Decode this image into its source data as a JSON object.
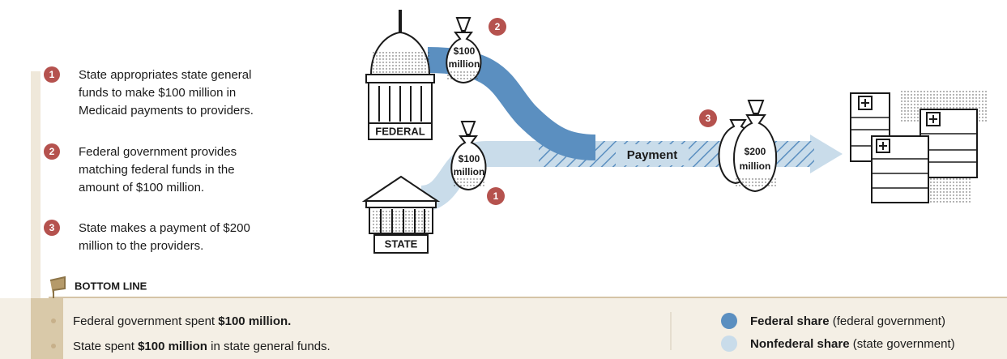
{
  "steps": [
    {
      "number": "1",
      "lines": [
        "State appropriates state general",
        "funds to make $100 million in",
        "Medicaid payments to providers."
      ]
    },
    {
      "number": "2",
      "lines": [
        "Federal government provides",
        "matching federal funds in the",
        "amount of $100 million."
      ]
    },
    {
      "number": "3",
      "lines": [
        "State makes a payment of $200",
        "million to the providers."
      ]
    }
  ],
  "diagram": {
    "federal_label": "FEDERAL",
    "state_label": "STATE",
    "bags": [
      [
        "$100",
        "million"
      ],
      [
        "$100",
        "million"
      ],
      [
        "$200",
        "million"
      ]
    ],
    "badges": [
      "2",
      "1",
      "3"
    ],
    "payment_label": "Payment"
  },
  "bottom_line": {
    "title": "BOTTOM LINE",
    "statements": [
      [
        "Federal government spent ",
        "$100 million."
      ],
      [
        "State spent ",
        "$100 million",
        " in state general funds."
      ]
    ]
  },
  "legend": [
    {
      "name": "Federal share",
      "note": " (federal government)",
      "color": "#5b8fc0"
    },
    {
      "name": "Nonfederal share",
      "note": " (state government)",
      "color": "#c9dcea"
    }
  ]
}
